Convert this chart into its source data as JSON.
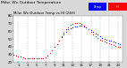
{
  "title": "Milwaukee Weather Outdoor Temperature vs Heat Index (24 Hours)",
  "bg_color": "#d8d8d8",
  "plot_bg_color": "#ffffff",
  "temp_color": "#0000cc",
  "hi_color": "#cc0000",
  "legend_temp_color": "#0000ff",
  "legend_hi_color": "#ff0000",
  "xlim": [
    0,
    24
  ],
  "ylim": [
    20,
    80
  ],
  "grid_color": "#999999",
  "temp_data": [
    [
      0.0,
      29
    ],
    [
      0.5,
      28
    ],
    [
      1.0,
      27
    ],
    [
      1.5,
      27
    ],
    [
      2.0,
      26
    ],
    [
      2.5,
      25
    ],
    [
      3.0,
      25
    ],
    [
      3.5,
      25
    ],
    [
      4.0,
      24
    ],
    [
      4.5,
      24
    ],
    [
      5.0,
      24
    ],
    [
      5.5,
      24
    ],
    [
      6.0,
      24
    ],
    [
      6.5,
      25
    ],
    [
      7.0,
      26
    ],
    [
      7.5,
      28
    ],
    [
      8.0,
      31
    ],
    [
      8.5,
      35
    ],
    [
      9.0,
      39
    ],
    [
      9.5,
      43
    ],
    [
      10.0,
      48
    ],
    [
      10.5,
      52
    ],
    [
      11.0,
      56
    ],
    [
      11.5,
      59
    ],
    [
      12.0,
      62
    ],
    [
      12.5,
      64
    ],
    [
      13.0,
      65
    ],
    [
      13.5,
      66
    ],
    [
      14.0,
      66
    ],
    [
      14.5,
      67
    ],
    [
      15.0,
      67
    ],
    [
      15.5,
      66
    ],
    [
      16.0,
      65
    ],
    [
      16.5,
      63
    ],
    [
      17.0,
      61
    ],
    [
      17.5,
      59
    ],
    [
      18.0,
      57
    ],
    [
      18.5,
      55
    ],
    [
      19.0,
      53
    ],
    [
      19.5,
      51
    ],
    [
      20.0,
      50
    ],
    [
      20.5,
      49
    ],
    [
      21.0,
      48
    ],
    [
      21.5,
      47
    ],
    [
      22.0,
      46
    ],
    [
      22.5,
      45
    ],
    [
      23.0,
      44
    ],
    [
      23.5,
      43
    ]
  ],
  "hi_data": [
    [
      0.0,
      29
    ],
    [
      0.5,
      28
    ],
    [
      1.0,
      27
    ],
    [
      1.5,
      27
    ],
    [
      2.0,
      26
    ],
    [
      2.5,
      25
    ],
    [
      3.0,
      25
    ],
    [
      3.5,
      25
    ],
    [
      4.0,
      24
    ],
    [
      4.5,
      24
    ],
    [
      5.0,
      24
    ],
    [
      5.5,
      24
    ],
    [
      6.0,
      24
    ],
    [
      6.5,
      25
    ],
    [
      7.0,
      26
    ],
    [
      7.5,
      28
    ],
    [
      8.0,
      31
    ],
    [
      8.5,
      35
    ],
    [
      9.0,
      39
    ],
    [
      9.5,
      43
    ],
    [
      10.0,
      48
    ],
    [
      10.5,
      53
    ],
    [
      11.0,
      58
    ],
    [
      11.5,
      62
    ],
    [
      12.0,
      65
    ],
    [
      12.5,
      68
    ],
    [
      13.0,
      69
    ],
    [
      13.5,
      70
    ],
    [
      14.0,
      70
    ],
    [
      14.5,
      70
    ],
    [
      15.0,
      69
    ],
    [
      15.5,
      67
    ],
    [
      16.0,
      65
    ],
    [
      16.5,
      62
    ],
    [
      17.0,
      59
    ],
    [
      17.5,
      56
    ],
    [
      18.0,
      53
    ],
    [
      18.5,
      51
    ],
    [
      19.0,
      49
    ],
    [
      19.5,
      47
    ],
    [
      20.0,
      46
    ],
    [
      20.5,
      45
    ],
    [
      21.0,
      44
    ],
    [
      21.5,
      43
    ],
    [
      22.0,
      42
    ],
    [
      22.5,
      41
    ],
    [
      23.0,
      40
    ],
    [
      23.5,
      39
    ]
  ],
  "xticks": [
    1,
    3,
    5,
    7,
    9,
    11,
    13,
    15,
    17,
    19,
    21,
    23
  ],
  "xtick_labels": [
    "1",
    "3",
    "5",
    "7",
    "9",
    "11",
    "13",
    "15",
    "17",
    "19",
    "21",
    "23"
  ],
  "yticks": [
    20,
    30,
    40,
    50,
    60,
    70,
    80
  ],
  "ytick_labels": [
    "20",
    "30",
    "40",
    "50",
    "60",
    "70",
    "80"
  ],
  "dot_size": 0.8,
  "title_fontsize": 3.2,
  "tick_fontsize": 2.8,
  "legend_label_temp": "Temp",
  "legend_label_hi": "HI"
}
